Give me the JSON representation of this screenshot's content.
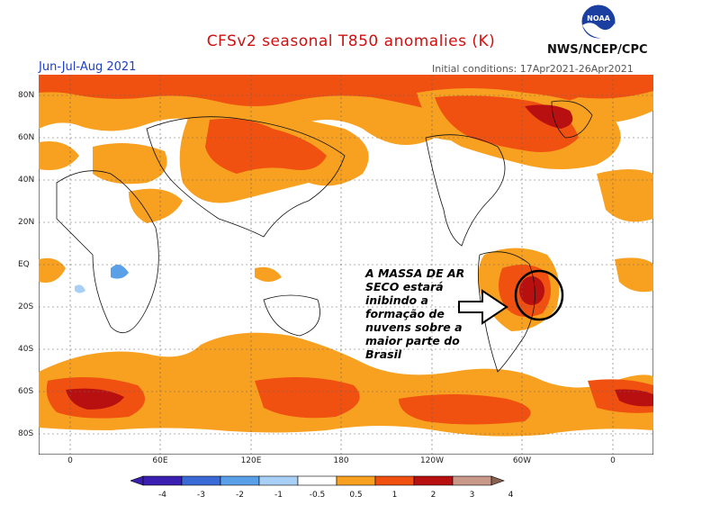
{
  "header": {
    "title": "CFSv2 seasonal T850 anomalies (K)",
    "season": "Jun-Jul-Aug 2021",
    "initial_conditions": "Initial conditions: 17Apr2021-26Apr2021",
    "agency": "NWS/NCEP/CPC",
    "logo_text": "NOAA"
  },
  "map": {
    "lat_labels": [
      "80N",
      "60N",
      "40N",
      "20N",
      "EQ",
      "20S",
      "40S",
      "60S",
      "80S"
    ],
    "lon_labels": [
      "0",
      "60E",
      "120E",
      "180",
      "120W",
      "60W",
      "0"
    ],
    "annotation": [
      "A MASSA DE AR",
      "SECO estará",
      "inibindo a",
      "formação de",
      "nuvens sobre a",
      "maior parte do",
      "Brasil"
    ]
  },
  "colorbar": {
    "labels": [
      "-4",
      "-3",
      "-2",
      "-1",
      "-0.5",
      "0.5",
      "1",
      "2",
      "3",
      "4"
    ],
    "colors": [
      "#3a1fb0",
      "#3a6ad6",
      "#5aa0e8",
      "#a8d0f6",
      "#ffffff",
      "#f8a020",
      "#f05010",
      "#b81010",
      "#c89888"
    ]
  }
}
